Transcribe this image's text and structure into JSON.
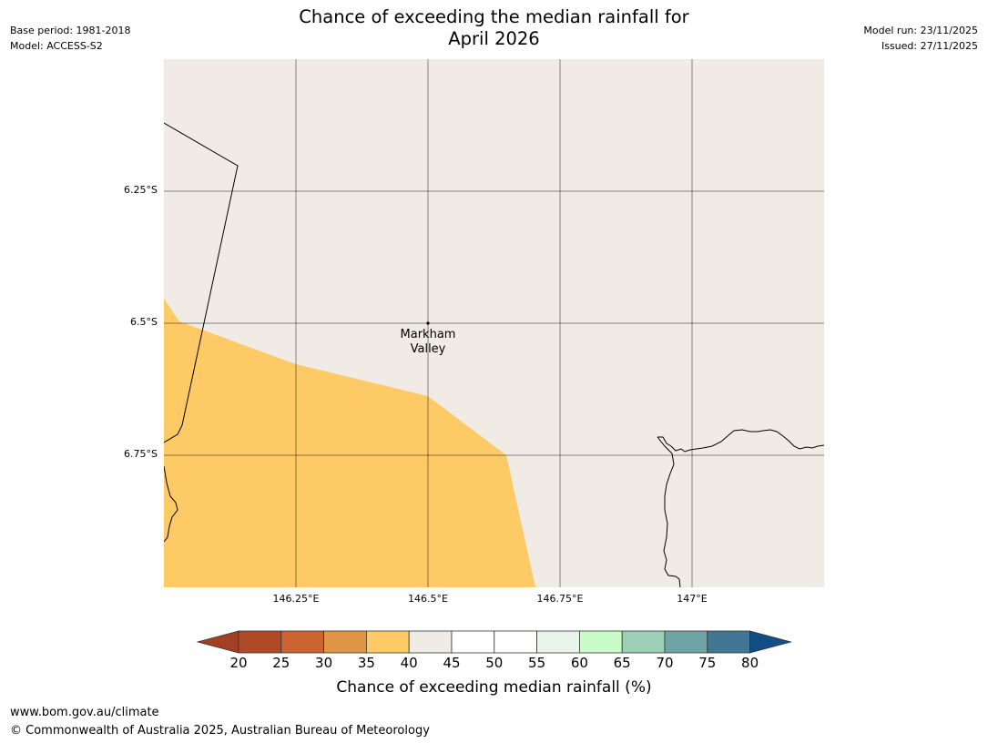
{
  "header": {
    "title_line1": "Chance of exceeding the median rainfall for",
    "title_line2": "April 2026",
    "base_period": "Base period: 1981-2018",
    "model": "Model: ACCESS-S2",
    "model_run": "Model run: 23/11/2025",
    "issued": "Issued: 27/11/2025"
  },
  "map": {
    "lat_ticks": [
      "6.25°S",
      "6.5°S",
      "6.75°S"
    ],
    "lon_ticks": [
      "146.25°E",
      "146.5°E",
      "146.75°E",
      "147°E"
    ],
    "place_name_line1": "Markham",
    "place_name_line2": "Valley",
    "regions": [
      {
        "category": "35-40",
        "color": "#fdca66"
      },
      {
        "category": "40-45",
        "color": "#f0ebe5"
      }
    ]
  },
  "colorbar": {
    "labels": [
      "20",
      "25",
      "30",
      "35",
      "40",
      "45",
      "50",
      "55",
      "60",
      "65",
      "70",
      "75",
      "80"
    ],
    "colors": [
      "#a33f22",
      "#b04a26",
      "#cc6431",
      "#e09445",
      "#fdca66",
      "#f0ebe5",
      "#ffffff",
      "#ffffff",
      "#eaf5e9",
      "#c8fcc8",
      "#9ccfb6",
      "#6fa4a6",
      "#417795",
      "#134d86"
    ],
    "title": "Chance of exceeding median rainfall (%)"
  },
  "footer": {
    "url": "www.bom.gov.au/climate",
    "copyright": "© Commonwealth of Australia 2025, Australian Bureau of Meteorology"
  }
}
